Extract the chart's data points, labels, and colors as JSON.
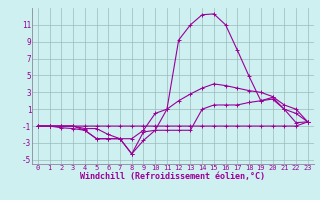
{
  "xlabel": "Windchill (Refroidissement éolien,°C)",
  "bg_color": "#cff0f0",
  "grid_color": "#99bbbb",
  "line_color": "#990099",
  "x": [
    0,
    1,
    2,
    3,
    4,
    5,
    6,
    7,
    8,
    9,
    10,
    11,
    12,
    13,
    14,
    15,
    16,
    17,
    18,
    19,
    20,
    21,
    22,
    23
  ],
  "series1": [
    -1,
    -1,
    -1.2,
    -1.3,
    -1.5,
    -2.5,
    -2.5,
    -2.5,
    -4.3,
    -1.7,
    -1.5,
    1.0,
    9.2,
    11.0,
    12.2,
    12.3,
    11.0,
    8.0,
    4.9,
    2.0,
    2.4,
    1.0,
    -0.6,
    -0.5
  ],
  "series2": [
    -1,
    -1,
    -1,
    -1,
    -1.3,
    -1.3,
    -2.0,
    -2.5,
    -2.5,
    -1.5,
    0.5,
    1.0,
    2.0,
    2.8,
    3.5,
    4.0,
    3.8,
    3.5,
    3.2,
    3.0,
    2.5,
    1.5,
    1.0,
    -0.5
  ],
  "series3": [
    -1,
    -1,
    -1,
    -1,
    -1,
    -1,
    -1,
    -1,
    -1,
    -1,
    -1,
    -1,
    -1,
    -1,
    -1,
    -1,
    -1,
    -1,
    -1,
    -1,
    -1,
    -1,
    -1,
    -0.5
  ],
  "series4": [
    -1,
    -1,
    -1,
    -1,
    -1.5,
    -2.5,
    -2.5,
    -2.5,
    -4.3,
    -2.7,
    -1.5,
    -1.5,
    -1.5,
    -1.5,
    1.0,
    1.5,
    1.5,
    1.5,
    1.8,
    2.0,
    2.2,
    1.0,
    0.5,
    -0.5
  ],
  "xlim": [
    -0.5,
    23.5
  ],
  "ylim": [
    -5.5,
    13.0
  ],
  "yticks": [
    -5,
    -3,
    -1,
    1,
    3,
    5,
    7,
    9,
    11
  ],
  "xticks": [
    0,
    1,
    2,
    3,
    4,
    5,
    6,
    7,
    8,
    9,
    10,
    11,
    12,
    13,
    14,
    15,
    16,
    17,
    18,
    19,
    20,
    21,
    22,
    23
  ],
  "tick_fontsize": 5.0,
  "xlabel_fontsize": 6.0,
  "figsize": [
    3.2,
    2.0
  ],
  "dpi": 100
}
